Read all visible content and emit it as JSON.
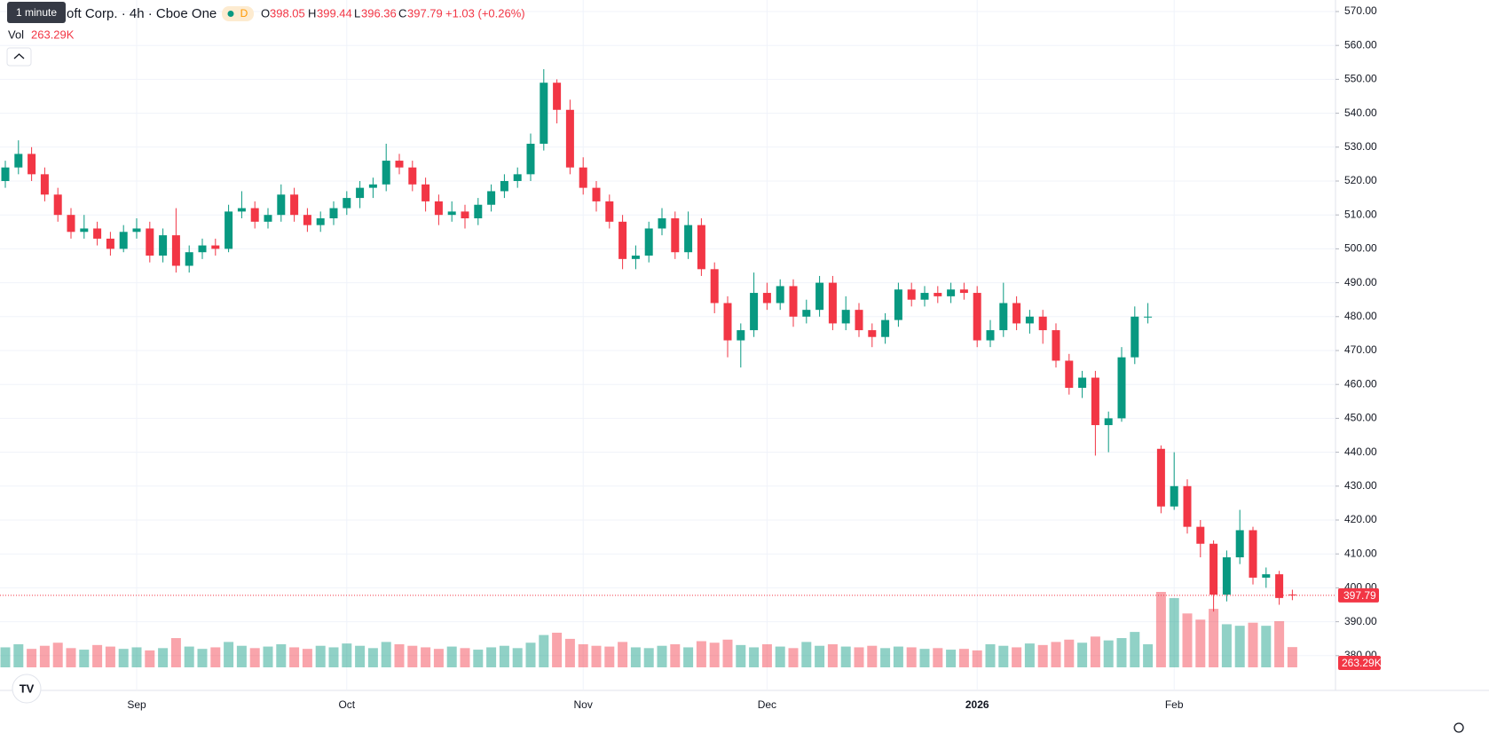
{
  "header": {
    "symbol": "oft Corp. · 4h · Cboe One",
    "tooltip": "1 minute",
    "badge": "D",
    "o": "O",
    "h": "H",
    "l": "L",
    "c": "C",
    "change": "+1.03 (+0.26%)",
    "vol": "Vol"
  },
  "chart_data": {
    "type": "candlestick",
    "categories": [
      null,
      null,
      null,
      null,
      null,
      null,
      null,
      null,
      null,
      null,
      "Sep",
      null,
      null,
      null,
      null,
      null,
      null,
      null,
      null,
      null,
      null,
      null,
      null,
      null,
      null,
      null,
      "Oct",
      null,
      null,
      null,
      null,
      null,
      null,
      null,
      null,
      null,
      null,
      null,
      null,
      null,
      null,
      null,
      null,
      null,
      "Nov",
      null,
      null,
      null,
      null,
      null,
      null,
      null,
      null,
      null,
      null,
      null,
      null,
      null,
      "Dec",
      null,
      null,
      null,
      null,
      null,
      null,
      null,
      null,
      null,
      null,
      null,
      null,
      null,
      null,
      null,
      "2026",
      null,
      null,
      null,
      null,
      null,
      null,
      null,
      null,
      null,
      null,
      null,
      null,
      null,
      null,
      "Feb",
      null,
      null,
      null,
      null,
      null,
      null,
      null,
      null,
      null
    ],
    "open": [
      520,
      524,
      528,
      522,
      516,
      510,
      505,
      506,
      503,
      500,
      505,
      506,
      498,
      504,
      495,
      499,
      501,
      500,
      511,
      512,
      508,
      510,
      516,
      510,
      507,
      509,
      512,
      515,
      518,
      519,
      526,
      524,
      519,
      514,
      510,
      511,
      509,
      513,
      517,
      520,
      522,
      531,
      549,
      541,
      524,
      518,
      514,
      508,
      497,
      498,
      506,
      509,
      499,
      507,
      494,
      484,
      473,
      476,
      487,
      484,
      489,
      480,
      482,
      490,
      478,
      482,
      476,
      474,
      479,
      488,
      485,
      487,
      486,
      488,
      487,
      473,
      476,
      484,
      478,
      480,
      476,
      467,
      459,
      462,
      448,
      450,
      468,
      480,
      441,
      424,
      430,
      418,
      413,
      398,
      409,
      417,
      403,
      404,
      398.05
    ],
    "high": [
      526,
      532,
      530,
      524,
      518,
      512,
      510,
      508,
      505,
      507,
      509,
      508,
      506,
      512,
      501,
      503,
      503,
      513,
      517,
      514,
      512,
      519,
      518,
      512,
      511,
      514,
      517,
      520,
      521,
      531,
      528,
      526,
      521,
      516,
      514,
      513,
      515,
      519,
      522,
      524,
      534,
      553,
      550,
      544,
      527,
      520,
      516,
      510,
      501,
      508,
      512,
      511,
      511,
      509,
      496,
      486,
      478,
      493,
      490,
      491,
      491,
      485,
      492,
      492,
      486,
      484,
      478,
      481,
      490,
      490,
      489,
      489,
      490,
      490,
      489,
      479,
      490,
      486,
      482,
      482,
      478,
      469,
      464,
      464,
      452,
      471,
      483,
      484,
      442,
      440,
      432,
      420,
      414,
      411,
      423,
      418,
      406,
      405,
      399.44
    ],
    "low": [
      518,
      522,
      520,
      514,
      508,
      503,
      503,
      501,
      498,
      499,
      503,
      496,
      496,
      493,
      493,
      497,
      498,
      499,
      509,
      506,
      506,
      508,
      508,
      505,
      505,
      507,
      510,
      512,
      515,
      517,
      522,
      517,
      511,
      507,
      508,
      506,
      507,
      511,
      515,
      518,
      520,
      529,
      537,
      522,
      516,
      511,
      506,
      494,
      494,
      496,
      504,
      497,
      497,
      492,
      481,
      468,
      465,
      474,
      482,
      482,
      477,
      478,
      480,
      476,
      476,
      474,
      471,
      472,
      477,
      483,
      483,
      484,
      484,
      485,
      471,
      471,
      474,
      476,
      475,
      472,
      465,
      457,
      456,
      439,
      440,
      449,
      466,
      478,
      422,
      423,
      416,
      409,
      393,
      396,
      407,
      401,
      400,
      395,
      396.36
    ],
    "close": [
      524,
      528,
      522,
      516,
      510,
      505,
      506,
      503,
      500,
      505,
      506,
      498,
      504,
      495,
      499,
      501,
      500,
      511,
      512,
      508,
      510,
      516,
      510,
      507,
      509,
      512,
      515,
      518,
      519,
      526,
      524,
      519,
      514,
      510,
      511,
      509,
      513,
      517,
      520,
      522,
      531,
      549,
      541,
      524,
      518,
      514,
      508,
      497,
      498,
      506,
      509,
      499,
      507,
      494,
      484,
      473,
      476,
      487,
      484,
      489,
      480,
      482,
      490,
      478,
      482,
      476,
      474,
      479,
      488,
      485,
      487,
      486,
      488,
      487,
      473,
      476,
      484,
      478,
      480,
      476,
      467,
      459,
      462,
      448,
      450,
      468,
      480,
      480,
      424,
      430,
      418,
      413,
      398,
      409,
      417,
      403,
      404,
      397,
      397.79
    ],
    "volume": [
      260,
      300,
      240,
      280,
      320,
      250,
      230,
      290,
      270,
      240,
      260,
      220,
      250,
      380,
      270,
      240,
      260,
      330,
      280,
      250,
      270,
      300,
      260,
      240,
      280,
      260,
      310,
      280,
      250,
      330,
      300,
      280,
      260,
      240,
      270,
      250,
      230,
      260,
      280,
      250,
      320,
      420,
      450,
      370,
      300,
      280,
      270,
      330,
      260,
      250,
      280,
      300,
      260,
      340,
      320,
      360,
      290,
      260,
      300,
      270,
      250,
      330,
      280,
      300,
      270,
      260,
      280,
      250,
      270,
      260,
      240,
      250,
      230,
      240,
      220,
      300,
      280,
      260,
      310,
      290,
      330,
      360,
      320,
      400,
      350,
      380,
      460,
      300,
      980,
      900,
      700,
      620,
      760,
      560,
      540,
      580,
      540,
      600,
      263.29
    ],
    "volume_label": "263.29K",
    "ylim": [
      370,
      573.4
    ],
    "yticks": [
      {
        "value": 380,
        "label": "380.00"
      },
      {
        "value": 390,
        "label": "390.00"
      },
      {
        "value": 400,
        "label": "400.00"
      },
      {
        "value": 410,
        "label": "410.00"
      },
      {
        "value": 420,
        "label": "420.00"
      },
      {
        "value": 430,
        "label": "430.00"
      },
      {
        "value": 440,
        "label": "440.00"
      },
      {
        "value": 450,
        "label": "450.00"
      },
      {
        "value": 460,
        "label": "460.00"
      },
      {
        "value": 470,
        "label": "470.00"
      },
      {
        "value": 480,
        "label": "480.00"
      },
      {
        "value": 490,
        "label": "490.00"
      },
      {
        "value": 500,
        "label": "500.00"
      },
      {
        "value": 510,
        "label": "510.00"
      },
      {
        "value": 520,
        "label": "520.00"
      },
      {
        "value": 530,
        "label": "530.00"
      },
      {
        "value": 540,
        "label": "540.00"
      },
      {
        "value": 550,
        "label": "550.00"
      },
      {
        "value": 560,
        "label": "560.00"
      },
      {
        "value": 570,
        "label": "570.00"
      }
    ],
    "up_color": "#089981",
    "down_color": "#f23645",
    "grid": true
  }
}
